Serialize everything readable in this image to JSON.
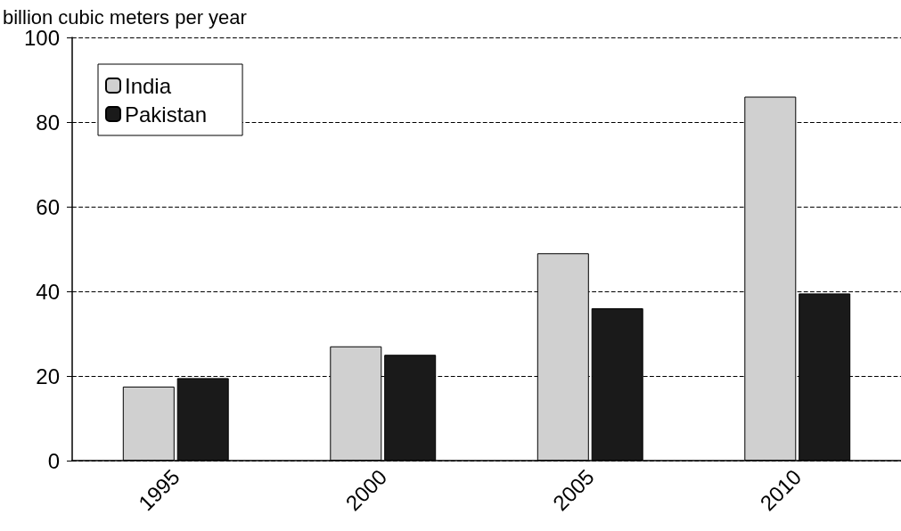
{
  "chart_data": {
    "type": "bar",
    "ylabel": "billion cubic meters per year",
    "categories": [
      "1995",
      "2000",
      "2005",
      "2010"
    ],
    "series": [
      {
        "name": "India",
        "color": "#d0d0d0",
        "values": [
          17.5,
          27,
          49,
          86
        ]
      },
      {
        "name": "Pakistan",
        "color": "#1a1a1a",
        "values": [
          19.5,
          25,
          36,
          39.5
        ]
      }
    ],
    "ylim": [
      0,
      100
    ],
    "yticks": [
      0,
      20,
      40,
      60,
      80,
      100
    ],
    "grid": "y",
    "legend": "top left"
  }
}
